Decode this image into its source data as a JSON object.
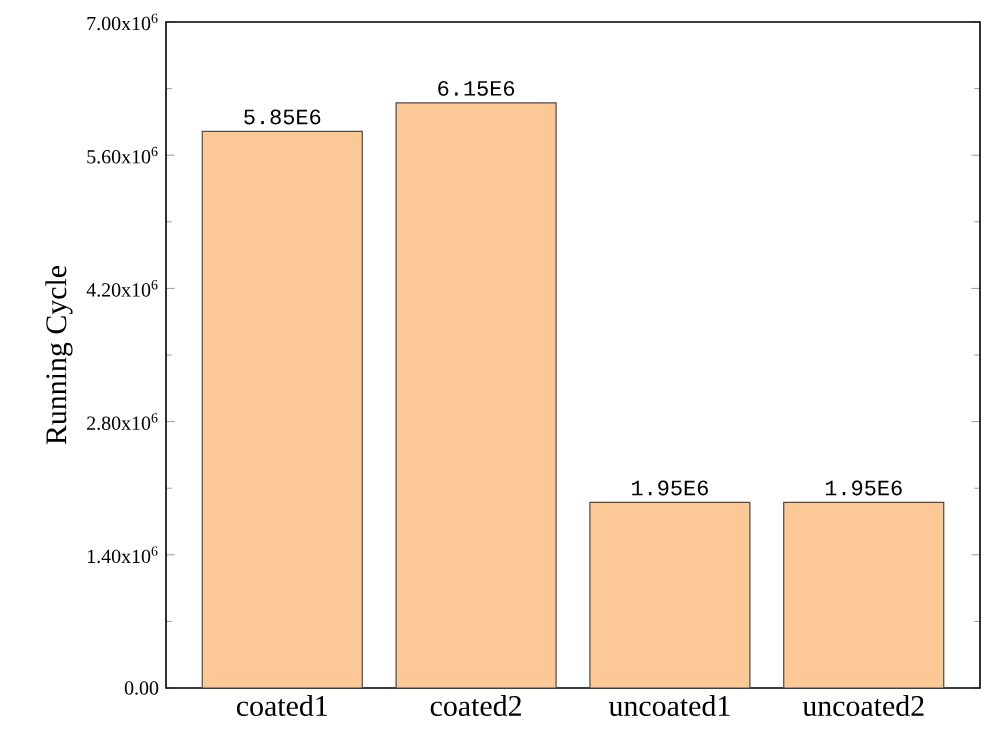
{
  "chart_data": {
    "type": "bar",
    "ylabel": "Running Cycle",
    "categories": [
      "coated1",
      "coated2",
      "uncoated1",
      "uncoated2"
    ],
    "values": [
      5850000,
      6150000,
      1950000,
      1950000
    ],
    "value_labels": [
      "5.85E6",
      "6.15E6",
      "1.95E6",
      "1.95E6"
    ],
    "color": "#fcc996",
    "ylim": [
      0,
      7000000
    ],
    "yticks": [
      {
        "value": 0,
        "label": "0.00"
      },
      {
        "value": 1400000,
        "label": "1.40x10$^{6}$"
      },
      {
        "value": 2800000,
        "label": "2.80x10$^{6}$"
      },
      {
        "value": 4200000,
        "label": "4.20x10$^{6}$"
      },
      {
        "value": 5600000,
        "label": "5.60x10$^{6}$"
      },
      {
        "value": 7000000,
        "label": "7.00x10$^{6}$"
      }
    ],
    "grid": false
  }
}
